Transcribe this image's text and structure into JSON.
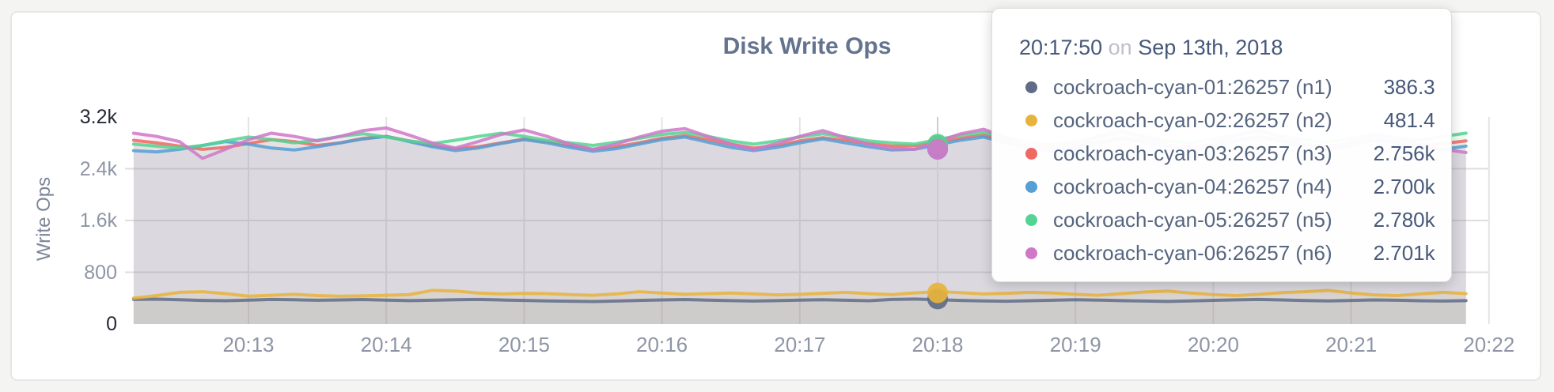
{
  "panel": {
    "title": "Disk Write Ops"
  },
  "tooltip": {
    "time": "20:17:50",
    "conjunction": "on",
    "date": "Sep 13th, 2018",
    "rows": [
      {
        "label": "cockroach-cyan-01:26257 (n1)",
        "value": "386.3"
      },
      {
        "label": "cockroach-cyan-02:26257 (n2)",
        "value": "481.4"
      },
      {
        "label": "cockroach-cyan-03:26257 (n3)",
        "value": "2.756k"
      },
      {
        "label": "cockroach-cyan-04:26257 (n4)",
        "value": "2.700k"
      },
      {
        "label": "cockroach-cyan-05:26257 (n5)",
        "value": "2.780k"
      },
      {
        "label": "cockroach-cyan-06:26257 (n6)",
        "value": "2.701k"
      }
    ]
  },
  "chart_data": {
    "type": "line",
    "title": "Disk Write Ops",
    "ylabel": "Write Ops",
    "ylim": [
      0,
      3200
    ],
    "grid": true,
    "legend_position": "tooltip-overlay",
    "y_ticks": [
      {
        "label": "3.2k",
        "value": 3200,
        "strong": true
      },
      {
        "label": "2.4k",
        "value": 2400,
        "strong": false
      },
      {
        "label": "1.6k",
        "value": 1600,
        "strong": false
      },
      {
        "label": "800",
        "value": 800,
        "strong": false
      },
      {
        "label": "0",
        "value": 0,
        "strong": true
      }
    ],
    "x_ticks": [
      "20:13",
      "20:14",
      "20:15",
      "20:16",
      "20:17",
      "20:18",
      "20:19",
      "20:20",
      "20:21",
      "20:22"
    ],
    "x_start": "20:12:10",
    "x_interval_sec": 10,
    "hover": {
      "time": "20:17:50",
      "values": [
        386.3,
        481.4,
        2756,
        2700,
        2780,
        2701
      ]
    },
    "series": [
      {
        "name": "cockroach-cyan-01:26257 (n1)",
        "color": "#5F6C87",
        "values": [
          380,
          385,
          375,
          365,
          360,
          370,
          380,
          375,
          368,
          372,
          378,
          370,
          362,
          368,
          375,
          380,
          372,
          365,
          358,
          352,
          348,
          355,
          365,
          372,
          378,
          370,
          362,
          355,
          362,
          370,
          376,
          368,
          360,
          380,
          386.3,
          375,
          365,
          358,
          352,
          360,
          368,
          375,
          370,
          362,
          356,
          350,
          358,
          366,
          374,
          380,
          372,
          364,
          358,
          365,
          372,
          368,
          360,
          355,
          362
        ]
      },
      {
        "name": "cockroach-cyan-02:26257 (n2)",
        "color": "#E8B33C",
        "values": [
          400,
          440,
          490,
          500,
          470,
          430,
          445,
          460,
          440,
          430,
          435,
          445,
          455,
          520,
          510,
          480,
          465,
          475,
          470,
          455,
          445,
          465,
          500,
          480,
          460,
          470,
          480,
          465,
          450,
          460,
          475,
          490,
          470,
          455,
          481.4,
          500,
          485,
          465,
          475,
          490,
          480,
          460,
          445,
          470,
          495,
          510,
          480,
          455,
          440,
          460,
          485,
          500,
          520,
          480,
          450,
          440,
          465,
          490,
          470
        ]
      },
      {
        "name": "cockroach-cyan-03:26257 (n3)",
        "color": "#EE6962",
        "values": [
          2840,
          2800,
          2750,
          2700,
          2730,
          2790,
          2850,
          2820,
          2760,
          2800,
          2870,
          2900,
          2830,
          2760,
          2710,
          2740,
          2800,
          2860,
          2820,
          2760,
          2700,
          2740,
          2800,
          2870,
          2910,
          2850,
          2780,
          2720,
          2760,
          2830,
          2880,
          2840,
          2790,
          2750,
          2756,
          2810,
          2870,
          2920,
          2840,
          2770,
          2720,
          2760,
          2820,
          2880,
          2830,
          2770,
          2730,
          2780,
          2850,
          2900,
          2840,
          2780,
          2740,
          2800,
          2860,
          2810,
          2760,
          2790,
          2830
        ]
      },
      {
        "name": "cockroach-cyan-04:26257 (n4)",
        "color": "#559FD5",
        "values": [
          2680,
          2660,
          2700,
          2760,
          2820,
          2780,
          2720,
          2690,
          2740,
          2800,
          2860,
          2900,
          2820,
          2740,
          2680,
          2720,
          2790,
          2850,
          2800,
          2730,
          2670,
          2710,
          2780,
          2850,
          2890,
          2810,
          2730,
          2680,
          2730,
          2800,
          2860,
          2800,
          2740,
          2690,
          2700,
          2770,
          2840,
          2890,
          2800,
          2720,
          2660,
          2710,
          2790,
          2860,
          2810,
          2740,
          2690,
          2750,
          2830,
          2880,
          2820,
          2750,
          2700,
          2760,
          2840,
          2790,
          2730,
          2700,
          2750
        ]
      },
      {
        "name": "cockroach-cyan-05:26257 (n5)",
        "color": "#54D392",
        "values": [
          2780,
          2750,
          2720,
          2760,
          2830,
          2890,
          2850,
          2800,
          2840,
          2900,
          2940,
          2890,
          2830,
          2790,
          2840,
          2900,
          2950,
          2900,
          2840,
          2800,
          2760,
          2810,
          2870,
          2930,
          2960,
          2900,
          2830,
          2780,
          2830,
          2890,
          2940,
          2890,
          2830,
          2800,
          2780,
          2850,
          2920,
          2960,
          2880,
          2810,
          2770,
          2820,
          2890,
          2950,
          2900,
          2840,
          2800,
          2860,
          2920,
          2970,
          2910,
          2850,
          2810,
          2870,
          2930,
          2880,
          2840,
          2900,
          2950
        ]
      },
      {
        "name": "cockroach-cyan-06:26257 (n6)",
        "color": "#D077C8",
        "values": [
          2950,
          2900,
          2820,
          2560,
          2700,
          2850,
          2950,
          2900,
          2830,
          2900,
          2990,
          3030,
          2920,
          2800,
          2720,
          2820,
          2930,
          3000,
          2900,
          2780,
          2700,
          2780,
          2890,
          2980,
          3020,
          2900,
          2780,
          2700,
          2790,
          2900,
          2990,
          2880,
          2780,
          2710,
          2701,
          2820,
          2940,
          3010,
          2880,
          2760,
          2690,
          2780,
          2900,
          2990,
          2890,
          2780,
          2710,
          2800,
          2920,
          3000,
          2890,
          2790,
          2720,
          2810,
          2930,
          2860,
          2780,
          2700,
          2650
        ]
      }
    ]
  }
}
